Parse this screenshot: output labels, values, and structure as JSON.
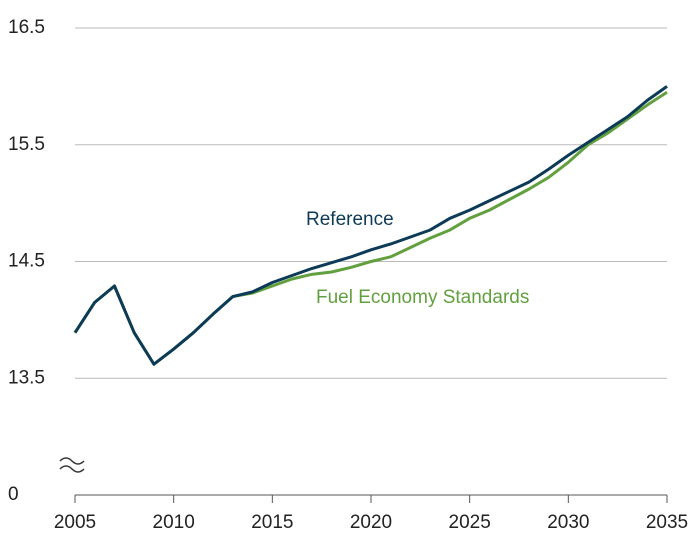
{
  "chart_data": {
    "type": "line",
    "x": [
      2005,
      2006,
      2007,
      2008,
      2009,
      2010,
      2011,
      2012,
      2013,
      2014,
      2015,
      2016,
      2017,
      2018,
      2019,
      2020,
      2021,
      2022,
      2023,
      2024,
      2025,
      2026,
      2027,
      2028,
      2029,
      2030,
      2031,
      2032,
      2033,
      2034,
      2035
    ],
    "series": [
      {
        "name": "Reference",
        "color": "#0d3b57",
        "values": [
          13.89,
          14.15,
          14.29,
          13.89,
          13.62,
          13.75,
          13.89,
          14.05,
          14.2,
          14.24,
          14.32,
          14.38,
          14.44,
          14.49,
          14.54,
          14.6,
          14.65,
          14.71,
          14.77,
          14.87,
          14.94,
          15.02,
          15.1,
          15.18,
          15.29,
          15.41,
          15.52,
          15.63,
          15.74,
          15.88,
          16.0
        ]
      },
      {
        "name": "Fuel Economy Standards",
        "color": "#62a03f",
        "values": [
          13.89,
          14.15,
          14.29,
          13.89,
          13.62,
          13.75,
          13.89,
          14.05,
          14.2,
          14.23,
          14.29,
          14.35,
          14.39,
          14.41,
          14.45,
          14.5,
          14.54,
          14.62,
          14.7,
          14.77,
          14.87,
          14.94,
          15.03,
          15.12,
          15.22,
          15.35,
          15.5,
          15.6,
          15.72,
          15.84,
          15.95
        ]
      }
    ],
    "xlim": [
      2005,
      2035
    ],
    "xticks": [
      2005,
      2010,
      2015,
      2020,
      2025,
      2030,
      2035
    ],
    "ylim": [
      0,
      16.5
    ],
    "yticks": [
      0,
      13.5,
      14.5,
      15.5,
      16.5
    ],
    "axis_break": true,
    "grid": true
  }
}
